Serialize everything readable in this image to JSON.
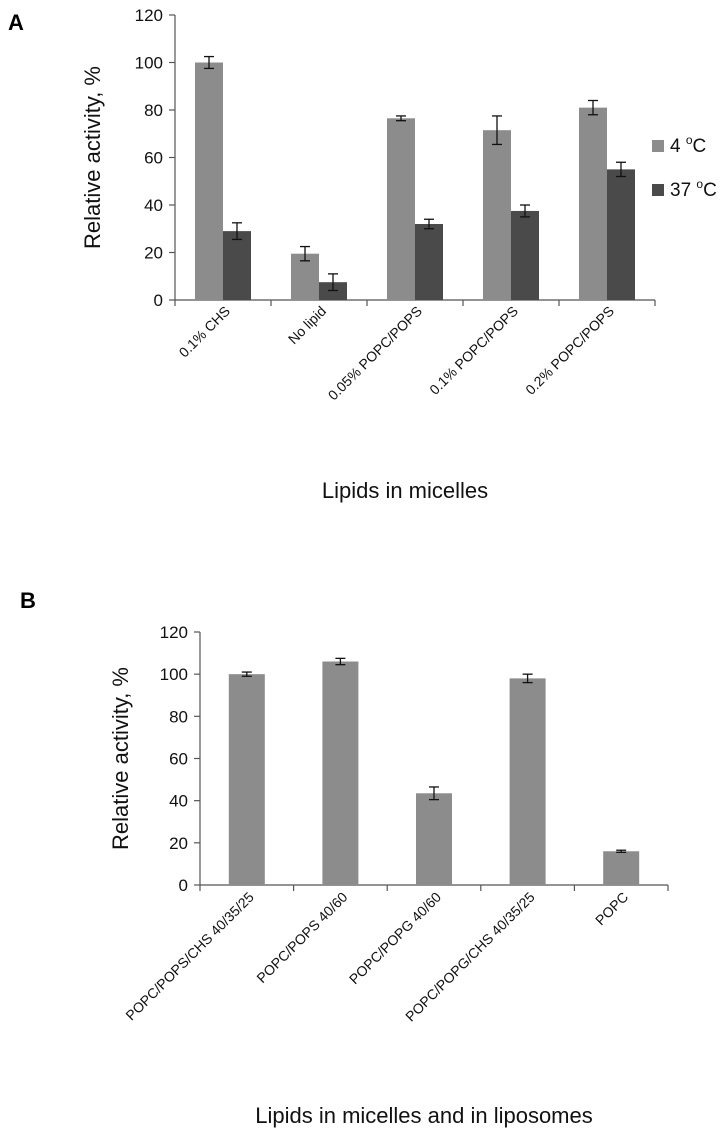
{
  "chart_data": [
    {
      "panel_label": "A",
      "type": "bar",
      "ylabel": "Relative activity, %",
      "xlabel": "Lipids in micelles",
      "ylim": [
        0,
        120
      ],
      "yticks": [
        0,
        20,
        40,
        60,
        80,
        100,
        120
      ],
      "categories": [
        "0.1% CHS",
        "No lipid",
        "0.05% POPC/POPS",
        "0.1% POPC/POPS",
        "0.2% POPC/POPS"
      ],
      "legend_position": "right",
      "series": [
        {
          "name": "4 °C",
          "name_base": "4 ",
          "name_sup": "o",
          "name_tail": "C",
          "color": "#8c8c8c",
          "values": [
            100,
            19.5,
            76.5,
            71.5,
            81
          ],
          "errors": [
            2.5,
            3,
            1,
            6,
            3
          ]
        },
        {
          "name": "37 °C",
          "name_base": "37 ",
          "name_sup": "o",
          "name_tail": "C",
          "color": "#4a4a4a",
          "values": [
            29,
            7.5,
            32,
            37.5,
            55
          ],
          "errors": [
            3.5,
            3.5,
            2,
            2.5,
            3
          ]
        }
      ]
    },
    {
      "panel_label": "B",
      "type": "bar",
      "ylabel": "Relative activity, %",
      "xlabel": "Lipids in micelles and in liposomes",
      "ylim": [
        0,
        120
      ],
      "yticks": [
        0,
        20,
        40,
        60,
        80,
        100,
        120
      ],
      "categories": [
        "POPC/POPS/CHS  40/35/25",
        "POPC/POPS  40/60",
        "POPC/POPG  40/60",
        "POPC/POPG/CHS  40/35/25",
        "POPC"
      ],
      "series": [
        {
          "color": "#8c8c8c",
          "values": [
            100,
            106,
            43.5,
            98,
            16
          ],
          "errors": [
            1,
            1.5,
            3,
            2,
            0.5
          ]
        }
      ]
    }
  ]
}
